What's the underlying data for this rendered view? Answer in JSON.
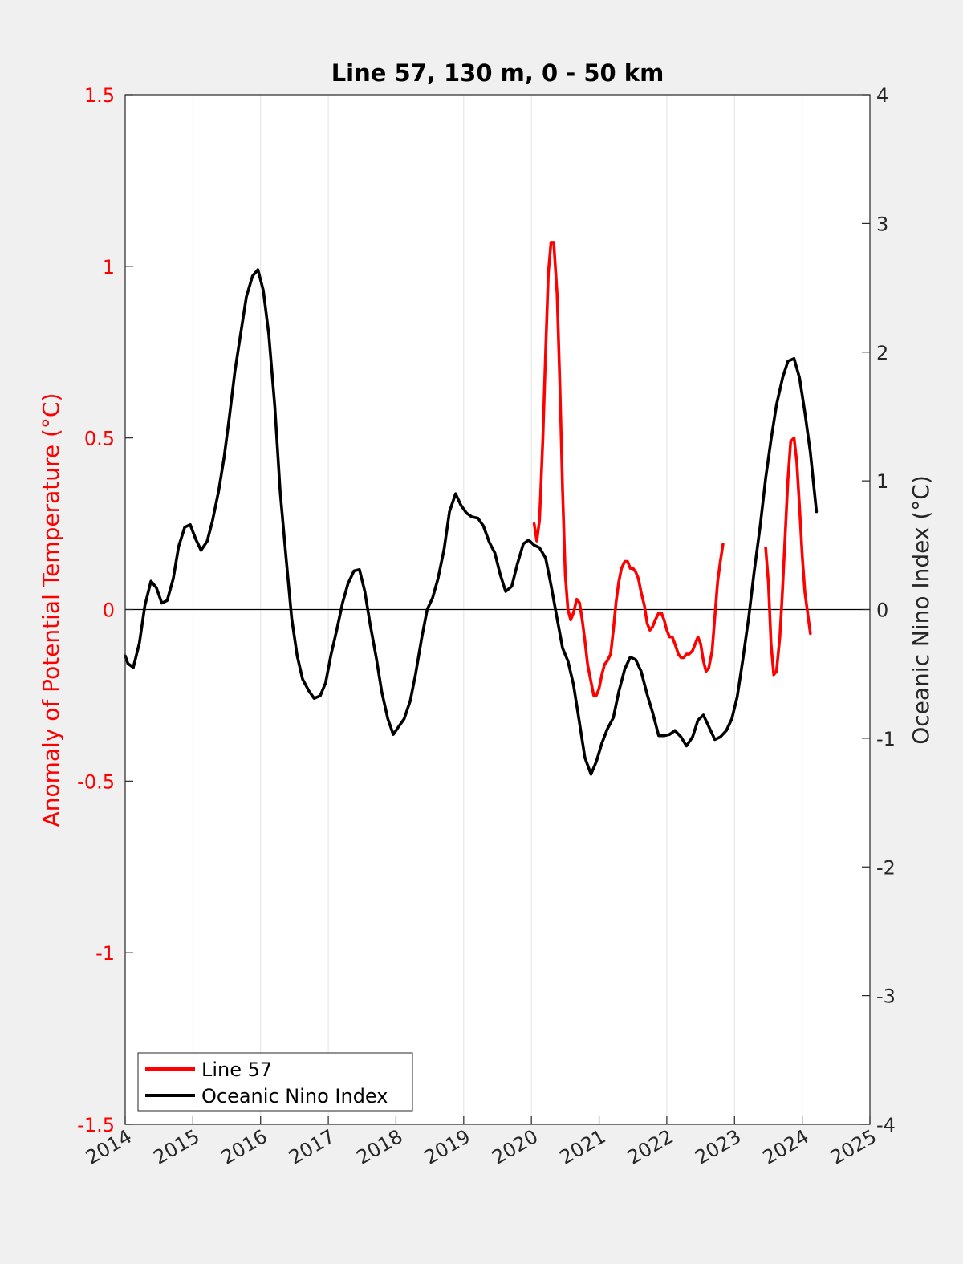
{
  "chart_data": {
    "type": "line",
    "title": "Line 57, 130 m, 0 - 50 km",
    "xlim": [
      2014,
      2025
    ],
    "x_ticks": [
      2014,
      2015,
      2016,
      2017,
      2018,
      2019,
      2020,
      2021,
      2022,
      2023,
      2024,
      2025
    ],
    "x_tick_labels": [
      "2014",
      "2015",
      "2016",
      "2017",
      "2018",
      "2019",
      "2020",
      "2021",
      "2022",
      "2023",
      "2024",
      "2025"
    ],
    "ylabel_left": "Anomaly of Potential Temperature (°C)",
    "ylim_left": [
      -1.5,
      1.5
    ],
    "y_ticks_left": [
      -1.5,
      -1,
      -0.5,
      0,
      0.5,
      1,
      1.5
    ],
    "y_tick_labels_left": [
      "-1.5",
      "-1",
      "-0.5",
      "0",
      "0.5",
      "1",
      "1.5"
    ],
    "ylabel_right": "Oceanic Nino Index (°C)",
    "ylim_right": [
      -4,
      4
    ],
    "y_ticks_right": [
      -4,
      -3,
      -2,
      -1,
      0,
      1,
      2,
      3,
      4
    ],
    "y_tick_labels_right": [
      "-4",
      "-3",
      "-2",
      "-1",
      "0",
      "1",
      "2",
      "3",
      "4"
    ],
    "grid": "vertical",
    "legend_position": "bottom-left",
    "colors": {
      "line57": "#ff0000",
      "oni": "#000000"
    },
    "series": [
      {
        "name": "Line 57",
        "axis": "left",
        "segments": [
          [
            [
              2020.04,
              0.25
            ],
            [
              2020.08,
              0.2
            ],
            [
              2020.12,
              0.26
            ],
            [
              2020.17,
              0.5
            ],
            [
              2020.21,
              0.75
            ],
            [
              2020.25,
              0.98
            ],
            [
              2020.29,
              1.07
            ],
            [
              2020.33,
              1.07
            ],
            [
              2020.38,
              0.92
            ],
            [
              2020.42,
              0.66
            ],
            [
              2020.46,
              0.35
            ],
            [
              2020.5,
              0.1
            ],
            [
              2020.54,
              0.0
            ],
            [
              2020.58,
              -0.03
            ],
            [
              2020.62,
              -0.01
            ],
            [
              2020.67,
              0.03
            ],
            [
              2020.71,
              0.02
            ],
            [
              2020.75,
              -0.03
            ],
            [
              2020.79,
              -0.09
            ],
            [
              2020.83,
              -0.16
            ],
            [
              2020.88,
              -0.21
            ],
            [
              2020.92,
              -0.25
            ],
            [
              2020.96,
              -0.25
            ],
            [
              2021.0,
              -0.23
            ],
            [
              2021.04,
              -0.19
            ],
            [
              2021.08,
              -0.16
            ],
            [
              2021.12,
              -0.15
            ],
            [
              2021.17,
              -0.13
            ],
            [
              2021.21,
              -0.06
            ],
            [
              2021.25,
              0.02
            ],
            [
              2021.29,
              0.08
            ],
            [
              2021.33,
              0.12
            ],
            [
              2021.38,
              0.14
            ],
            [
              2021.42,
              0.14
            ],
            [
              2021.46,
              0.12
            ],
            [
              2021.5,
              0.12
            ],
            [
              2021.54,
              0.11
            ],
            [
              2021.58,
              0.09
            ],
            [
              2021.62,
              0.05
            ],
            [
              2021.67,
              0.01
            ],
            [
              2021.71,
              -0.04
            ],
            [
              2021.75,
              -0.06
            ],
            [
              2021.79,
              -0.05
            ],
            [
              2021.83,
              -0.03
            ],
            [
              2021.88,
              -0.01
            ],
            [
              2021.92,
              -0.01
            ],
            [
              2021.96,
              -0.03
            ],
            [
              2022.0,
              -0.06
            ],
            [
              2022.04,
              -0.08
            ],
            [
              2022.08,
              -0.08
            ],
            [
              2022.12,
              -0.1
            ],
            [
              2022.17,
              -0.13
            ],
            [
              2022.21,
              -0.14
            ],
            [
              2022.25,
              -0.14
            ],
            [
              2022.29,
              -0.13
            ],
            [
              2022.33,
              -0.13
            ],
            [
              2022.38,
              -0.12
            ],
            [
              2022.42,
              -0.1
            ],
            [
              2022.46,
              -0.08
            ],
            [
              2022.5,
              -0.1
            ],
            [
              2022.54,
              -0.15
            ],
            [
              2022.58,
              -0.18
            ],
            [
              2022.62,
              -0.17
            ],
            [
              2022.67,
              -0.12
            ],
            [
              2022.71,
              -0.02
            ],
            [
              2022.75,
              0.08
            ],
            [
              2022.79,
              0.14
            ],
            [
              2022.83,
              0.19
            ]
          ],
          [
            [
              2023.46,
              0.18
            ],
            [
              2023.5,
              0.08
            ],
            [
              2023.54,
              -0.1
            ],
            [
              2023.58,
              -0.19
            ],
            [
              2023.62,
              -0.18
            ],
            [
              2023.67,
              -0.08
            ],
            [
              2023.71,
              0.06
            ],
            [
              2023.75,
              0.22
            ],
            [
              2023.79,
              0.38
            ],
            [
              2023.83,
              0.49
            ],
            [
              2023.88,
              0.5
            ],
            [
              2023.92,
              0.43
            ],
            [
              2023.96,
              0.3
            ],
            [
              2024.0,
              0.16
            ],
            [
              2024.04,
              0.05
            ],
            [
              2024.08,
              -0.01
            ],
            [
              2024.12,
              -0.07
            ]
          ]
        ]
      },
      {
        "name": "Oceanic Nino Index",
        "axis": "right",
        "points": [
          [
            2014.0,
            -0.36
          ],
          [
            2014.04,
            -0.42
          ],
          [
            2014.12,
            -0.45
          ],
          [
            2014.21,
            -0.26
          ],
          [
            2014.29,
            0.03
          ],
          [
            2014.38,
            0.22
          ],
          [
            2014.46,
            0.17
          ],
          [
            2014.54,
            0.05
          ],
          [
            2014.62,
            0.07
          ],
          [
            2014.71,
            0.24
          ],
          [
            2014.79,
            0.49
          ],
          [
            2014.88,
            0.64
          ],
          [
            2014.96,
            0.66
          ],
          [
            2015.04,
            0.55
          ],
          [
            2015.12,
            0.46
          ],
          [
            2015.21,
            0.53
          ],
          [
            2015.29,
            0.69
          ],
          [
            2015.38,
            0.92
          ],
          [
            2015.46,
            1.18
          ],
          [
            2015.54,
            1.5
          ],
          [
            2015.62,
            1.85
          ],
          [
            2015.71,
            2.16
          ],
          [
            2015.79,
            2.43
          ],
          [
            2015.88,
            2.59
          ],
          [
            2015.96,
            2.64
          ],
          [
            2016.04,
            2.48
          ],
          [
            2016.12,
            2.14
          ],
          [
            2016.21,
            1.58
          ],
          [
            2016.29,
            0.91
          ],
          [
            2016.38,
            0.38
          ],
          [
            2016.46,
            -0.07
          ],
          [
            2016.54,
            -0.36
          ],
          [
            2016.62,
            -0.54
          ],
          [
            2016.71,
            -0.63
          ],
          [
            2016.79,
            -0.69
          ],
          [
            2016.88,
            -0.67
          ],
          [
            2016.96,
            -0.57
          ],
          [
            2017.04,
            -0.35
          ],
          [
            2017.12,
            -0.17
          ],
          [
            2017.21,
            0.05
          ],
          [
            2017.29,
            0.2
          ],
          [
            2017.38,
            0.3
          ],
          [
            2017.46,
            0.31
          ],
          [
            2017.54,
            0.14
          ],
          [
            2017.62,
            -0.12
          ],
          [
            2017.71,
            -0.38
          ],
          [
            2017.79,
            -0.64
          ],
          [
            2017.88,
            -0.85
          ],
          [
            2017.96,
            -0.97
          ],
          [
            2018.04,
            -0.91
          ],
          [
            2018.12,
            -0.85
          ],
          [
            2018.21,
            -0.71
          ],
          [
            2018.29,
            -0.5
          ],
          [
            2018.38,
            -0.22
          ],
          [
            2018.46,
            0.0
          ],
          [
            2018.54,
            0.09
          ],
          [
            2018.62,
            0.24
          ],
          [
            2018.71,
            0.47
          ],
          [
            2018.79,
            0.76
          ],
          [
            2018.88,
            0.9
          ],
          [
            2018.96,
            0.81
          ],
          [
            2019.04,
            0.75
          ],
          [
            2019.12,
            0.72
          ],
          [
            2019.21,
            0.71
          ],
          [
            2019.29,
            0.65
          ],
          [
            2019.38,
            0.52
          ],
          [
            2019.46,
            0.44
          ],
          [
            2019.54,
            0.27
          ],
          [
            2019.62,
            0.14
          ],
          [
            2019.71,
            0.18
          ],
          [
            2019.79,
            0.35
          ],
          [
            2019.88,
            0.51
          ],
          [
            2019.96,
            0.54
          ],
          [
            2020.04,
            0.5
          ],
          [
            2020.12,
            0.48
          ],
          [
            2020.21,
            0.4
          ],
          [
            2020.29,
            0.19
          ],
          [
            2020.38,
            -0.07
          ],
          [
            2020.46,
            -0.3
          ],
          [
            2020.54,
            -0.4
          ],
          [
            2020.62,
            -0.58
          ],
          [
            2020.71,
            -0.88
          ],
          [
            2020.79,
            -1.15
          ],
          [
            2020.88,
            -1.28
          ],
          [
            2020.96,
            -1.18
          ],
          [
            2021.04,
            -1.04
          ],
          [
            2021.12,
            -0.93
          ],
          [
            2021.21,
            -0.84
          ],
          [
            2021.29,
            -0.64
          ],
          [
            2021.38,
            -0.46
          ],
          [
            2021.46,
            -0.37
          ],
          [
            2021.54,
            -0.39
          ],
          [
            2021.62,
            -0.48
          ],
          [
            2021.71,
            -0.66
          ],
          [
            2021.79,
            -0.8
          ],
          [
            2021.88,
            -0.98
          ],
          [
            2021.96,
            -0.98
          ],
          [
            2022.04,
            -0.97
          ],
          [
            2022.12,
            -0.94
          ],
          [
            2022.21,
            -0.99
          ],
          [
            2022.29,
            -1.06
          ],
          [
            2022.38,
            -0.99
          ],
          [
            2022.46,
            -0.86
          ],
          [
            2022.54,
            -0.82
          ],
          [
            2022.62,
            -0.91
          ],
          [
            2022.71,
            -1.01
          ],
          [
            2022.79,
            -0.99
          ],
          [
            2022.88,
            -0.94
          ],
          [
            2022.96,
            -0.85
          ],
          [
            2023.04,
            -0.68
          ],
          [
            2023.12,
            -0.4
          ],
          [
            2023.21,
            -0.06
          ],
          [
            2023.29,
            0.29
          ],
          [
            2023.38,
            0.65
          ],
          [
            2023.46,
            1.02
          ],
          [
            2023.54,
            1.32
          ],
          [
            2023.62,
            1.59
          ],
          [
            2023.71,
            1.8
          ],
          [
            2023.79,
            1.93
          ],
          [
            2023.88,
            1.95
          ],
          [
            2023.96,
            1.8
          ],
          [
            2024.04,
            1.53
          ],
          [
            2024.12,
            1.22
          ],
          [
            2024.21,
            0.76
          ]
        ]
      }
    ]
  },
  "legend": {
    "items": [
      {
        "label": "Line 57",
        "color": "#ff0000"
      },
      {
        "label": "Oceanic Nino Index",
        "color": "#000000"
      }
    ]
  }
}
